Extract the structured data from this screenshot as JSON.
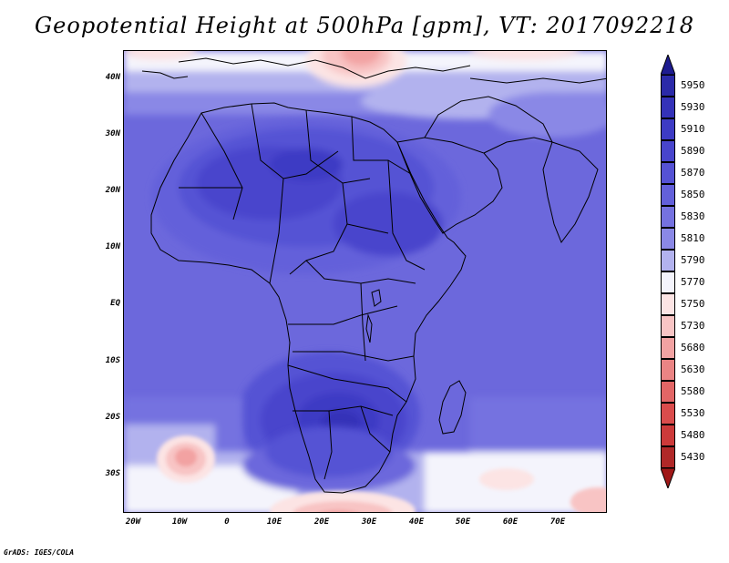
{
  "title": "Geopotential Height at 500hPa [gpm], VT: 2017092218",
  "credit": "GrADS: IGES/COLA",
  "map": {
    "projection": "latlon",
    "region": "Africa, Mediterranean, Arabian Peninsula, western Indian Ocean",
    "lat_range": [
      -36,
      44
    ],
    "lon_range": [
      -22,
      80
    ],
    "lat_ticks": [
      "40N",
      "30N",
      "20N",
      "10N",
      "EQ",
      "10S",
      "20S",
      "30S"
    ],
    "lon_ticks": [
      "20W",
      "10W",
      "0",
      "10E",
      "20E",
      "30E",
      "40E",
      "50E",
      "60E",
      "70E"
    ],
    "lat_tick_values": [
      40,
      30,
      20,
      10,
      0,
      -10,
      -20,
      -30
    ],
    "lon_tick_values": [
      -20,
      -10,
      0,
      10,
      20,
      30,
      40,
      50,
      60,
      70
    ],
    "features": {
      "highs": [
        "Sahara / North Africa",
        "Southern Africa interior"
      ],
      "lows": [
        "Eastern Mediterranean / Greece",
        "South Atlantic near 10W 28S",
        "Southern tip of Africa"
      ]
    }
  },
  "colorbar": {
    "levels": [
      "5950",
      "5930",
      "5910",
      "5890",
      "5870",
      "5850",
      "5830",
      "5810",
      "5790",
      "5770",
      "5750",
      "5730",
      "5680",
      "5630",
      "5580",
      "5530",
      "5480",
      "5430"
    ],
    "colors": [
      "#2b2aa8",
      "#3432b8",
      "#3d3bc4",
      "#4845cc",
      "#5552d4",
      "#6360da",
      "#7572e0",
      "#8a88e6",
      "#b2b2ee",
      "#f4f4fc",
      "#fce4e4",
      "#f8c4c4",
      "#f2a2a2",
      "#ea8484",
      "#e26666",
      "#da4c4c",
      "#cc3a3a",
      "#b02828"
    ],
    "top_arrow_color": "#1e1c90",
    "bottom_arrow_color": "#a01818"
  }
}
